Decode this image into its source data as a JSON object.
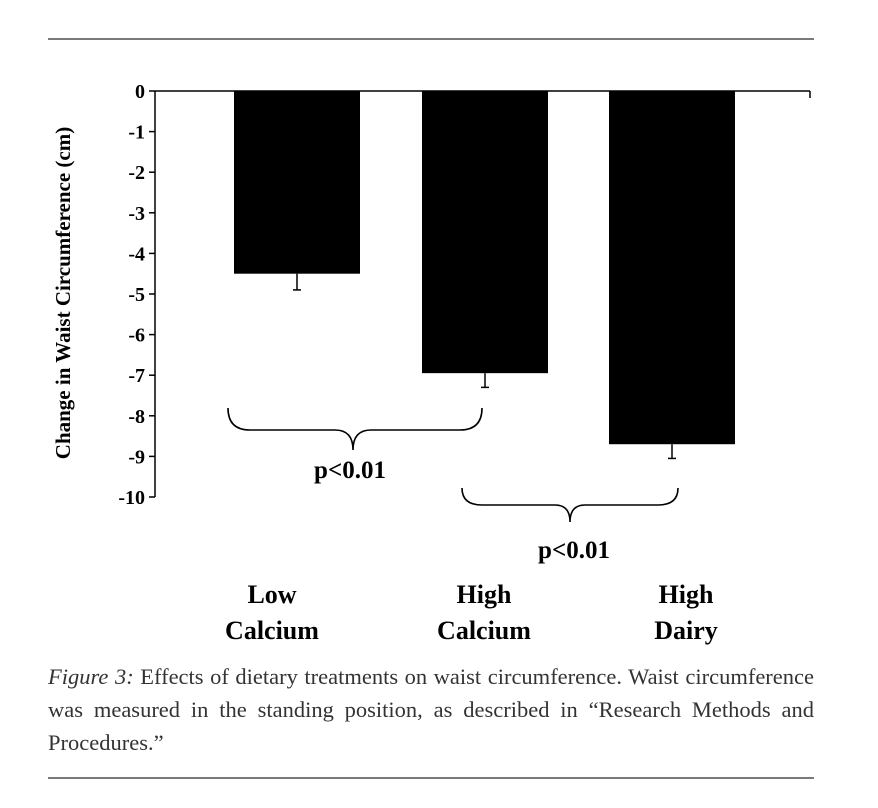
{
  "chart_data": {
    "type": "bar",
    "categories": [
      "Low Calcium",
      "High Calcium",
      "High Dairy"
    ],
    "category_lines": [
      [
        "Low",
        "Calcium"
      ],
      [
        "High",
        "Calcium"
      ],
      [
        "High",
        "Dairy"
      ]
    ],
    "values": [
      -4.5,
      -6.95,
      -8.7
    ],
    "error_bars": [
      0.4,
      0.35,
      0.35
    ],
    "ylim": [
      -10,
      0
    ],
    "yticks": [
      0,
      -1,
      -2,
      -3,
      -4,
      -5,
      -6,
      -7,
      -8,
      -9,
      -10
    ],
    "ylabel": "Change in Waist Circumference (cm)",
    "xlabel": "",
    "title": "",
    "bar_color": "#000000",
    "annotations": [
      {
        "text": "p<0.01",
        "from": "Low Calcium",
        "to": "High Calcium"
      },
      {
        "text": "p<0.01",
        "from": "High Calcium",
        "to": "High Dairy"
      }
    ],
    "grid": false,
    "legend": "none"
  },
  "caption": {
    "label": "Figure 3:",
    "text": " Effects of dietary treatments on waist circumference. Waist circumference was measured in the standing position, as described in “Research Methods and Procedures.”"
  }
}
